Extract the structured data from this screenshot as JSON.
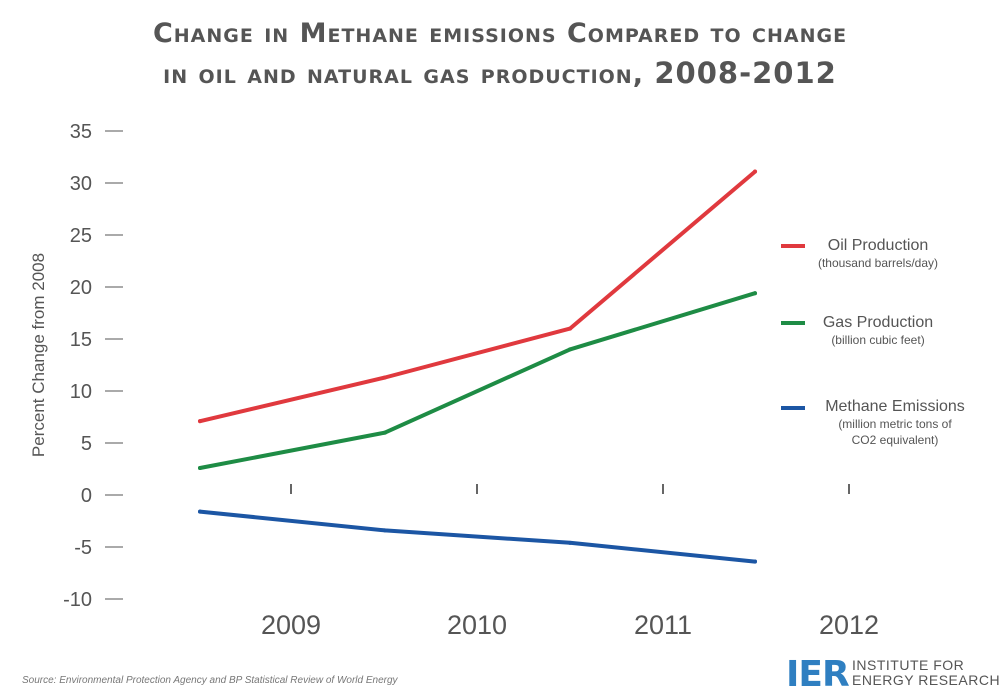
{
  "title": {
    "line1": "Change in Methane emissions Compared to change",
    "line2_text": "in oil and natural gas production, ",
    "line2_years": "2008-2012"
  },
  "source": "Source: Environmental Protection Agency and BP Statistical Review of World Energy",
  "logo": {
    "mark": "IER",
    "line1": "INSTITUTE FOR",
    "line2": "ENERGY RESEARCH",
    "color": "#2f7fc1"
  },
  "legend": [
    {
      "name": "Oil Production",
      "unit": "(thousand barrels/day)",
      "color": "#e0393e"
    },
    {
      "name": "Gas Production",
      "unit": "(billion cubic feet)",
      "color": "#1e8c45"
    },
    {
      "name": "Methane Emissions",
      "unit_line1": "(million metric tons of",
      "unit_line2": "CO2 equivalent)",
      "color": "#1c56a4"
    }
  ],
  "chart_data": {
    "type": "line",
    "categories": [
      "2009",
      "2010",
      "2011",
      "2012"
    ],
    "ylabel": "Percent Change from 2008",
    "ylim": [
      -10,
      35
    ],
    "yticks": [
      "-10",
      "-5",
      "0",
      "5",
      "10",
      "15",
      "20",
      "25",
      "30",
      "35"
    ],
    "grid": false,
    "legend_position": "right",
    "series": [
      {
        "name": "Oil Production",
        "color": "#e0393e",
        "values": [
          7.1,
          11.3,
          16.0,
          31.1
        ]
      },
      {
        "name": "Gas Production",
        "color": "#1e8c45",
        "values": [
          2.6,
          6.0,
          14.0,
          19.4
        ]
      },
      {
        "name": "Methane Emissions",
        "color": "#1c56a4",
        "values": [
          -1.6,
          -3.4,
          -4.6,
          -6.4
        ]
      }
    ]
  }
}
